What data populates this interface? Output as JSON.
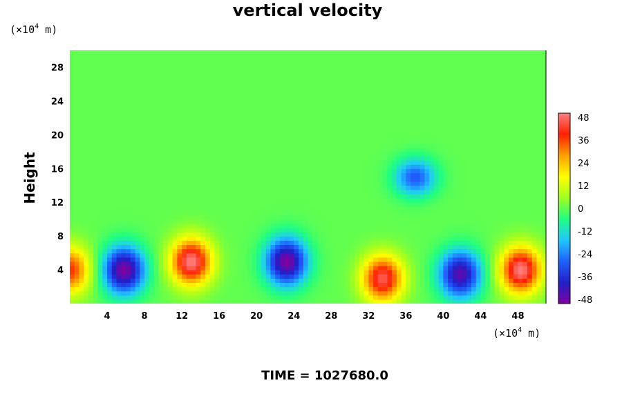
{
  "chart_data": {
    "type": "heatmap",
    "title": "vertical velocity",
    "ylabel": "Height",
    "x_unit": {
      "prefix": "(×10",
      "exp": "4",
      "suffix": " m)"
    },
    "y_unit": {
      "prefix": "(×10",
      "exp": "4",
      "suffix": " m)"
    },
    "xlim": [
      0,
      51
    ],
    "ylim": [
      0,
      30
    ],
    "x_ticks": [
      "4",
      "8",
      "12",
      "16",
      "20",
      "24",
      "28",
      "32",
      "36",
      "40",
      "44",
      "48"
    ],
    "y_ticks": [
      "4",
      "8",
      "12",
      "16",
      "20",
      "24",
      "28"
    ],
    "colorbar": {
      "range": [
        -48,
        48
      ],
      "ticks": [
        "48",
        "36",
        "24",
        "12",
        "0",
        "-12",
        "-24",
        "-36",
        "-48"
      ],
      "palette": [
        "#8000a0",
        "#2020c8",
        "#2060ff",
        "#20c8ff",
        "#20ff80",
        "#a0ff20",
        "#ffff00",
        "#ffa000",
        "#ff2000",
        "#ff8080"
      ]
    },
    "features": [
      {
        "type": "downdraft",
        "x": 5.8,
        "y": 4.0,
        "value": -48
      },
      {
        "type": "updraft",
        "x": 13.0,
        "y": 5.0,
        "value": 48
      },
      {
        "type": "downdraft",
        "x": 23.2,
        "y": 5.0,
        "value": -48
      },
      {
        "type": "updraft",
        "x": 33.5,
        "y": 3.0,
        "value": 44
      },
      {
        "type": "downdraft",
        "x": 41.8,
        "y": 3.5,
        "value": -44
      },
      {
        "type": "updraft",
        "x": 48.3,
        "y": 4.0,
        "value": 48
      },
      {
        "type": "downdraft",
        "x": 37.0,
        "y": 15.0,
        "value": -28
      },
      {
        "type": "updraft",
        "x": 0.0,
        "y": 4.0,
        "value": 36
      }
    ],
    "annotation": "TIME = 1027680.0"
  }
}
